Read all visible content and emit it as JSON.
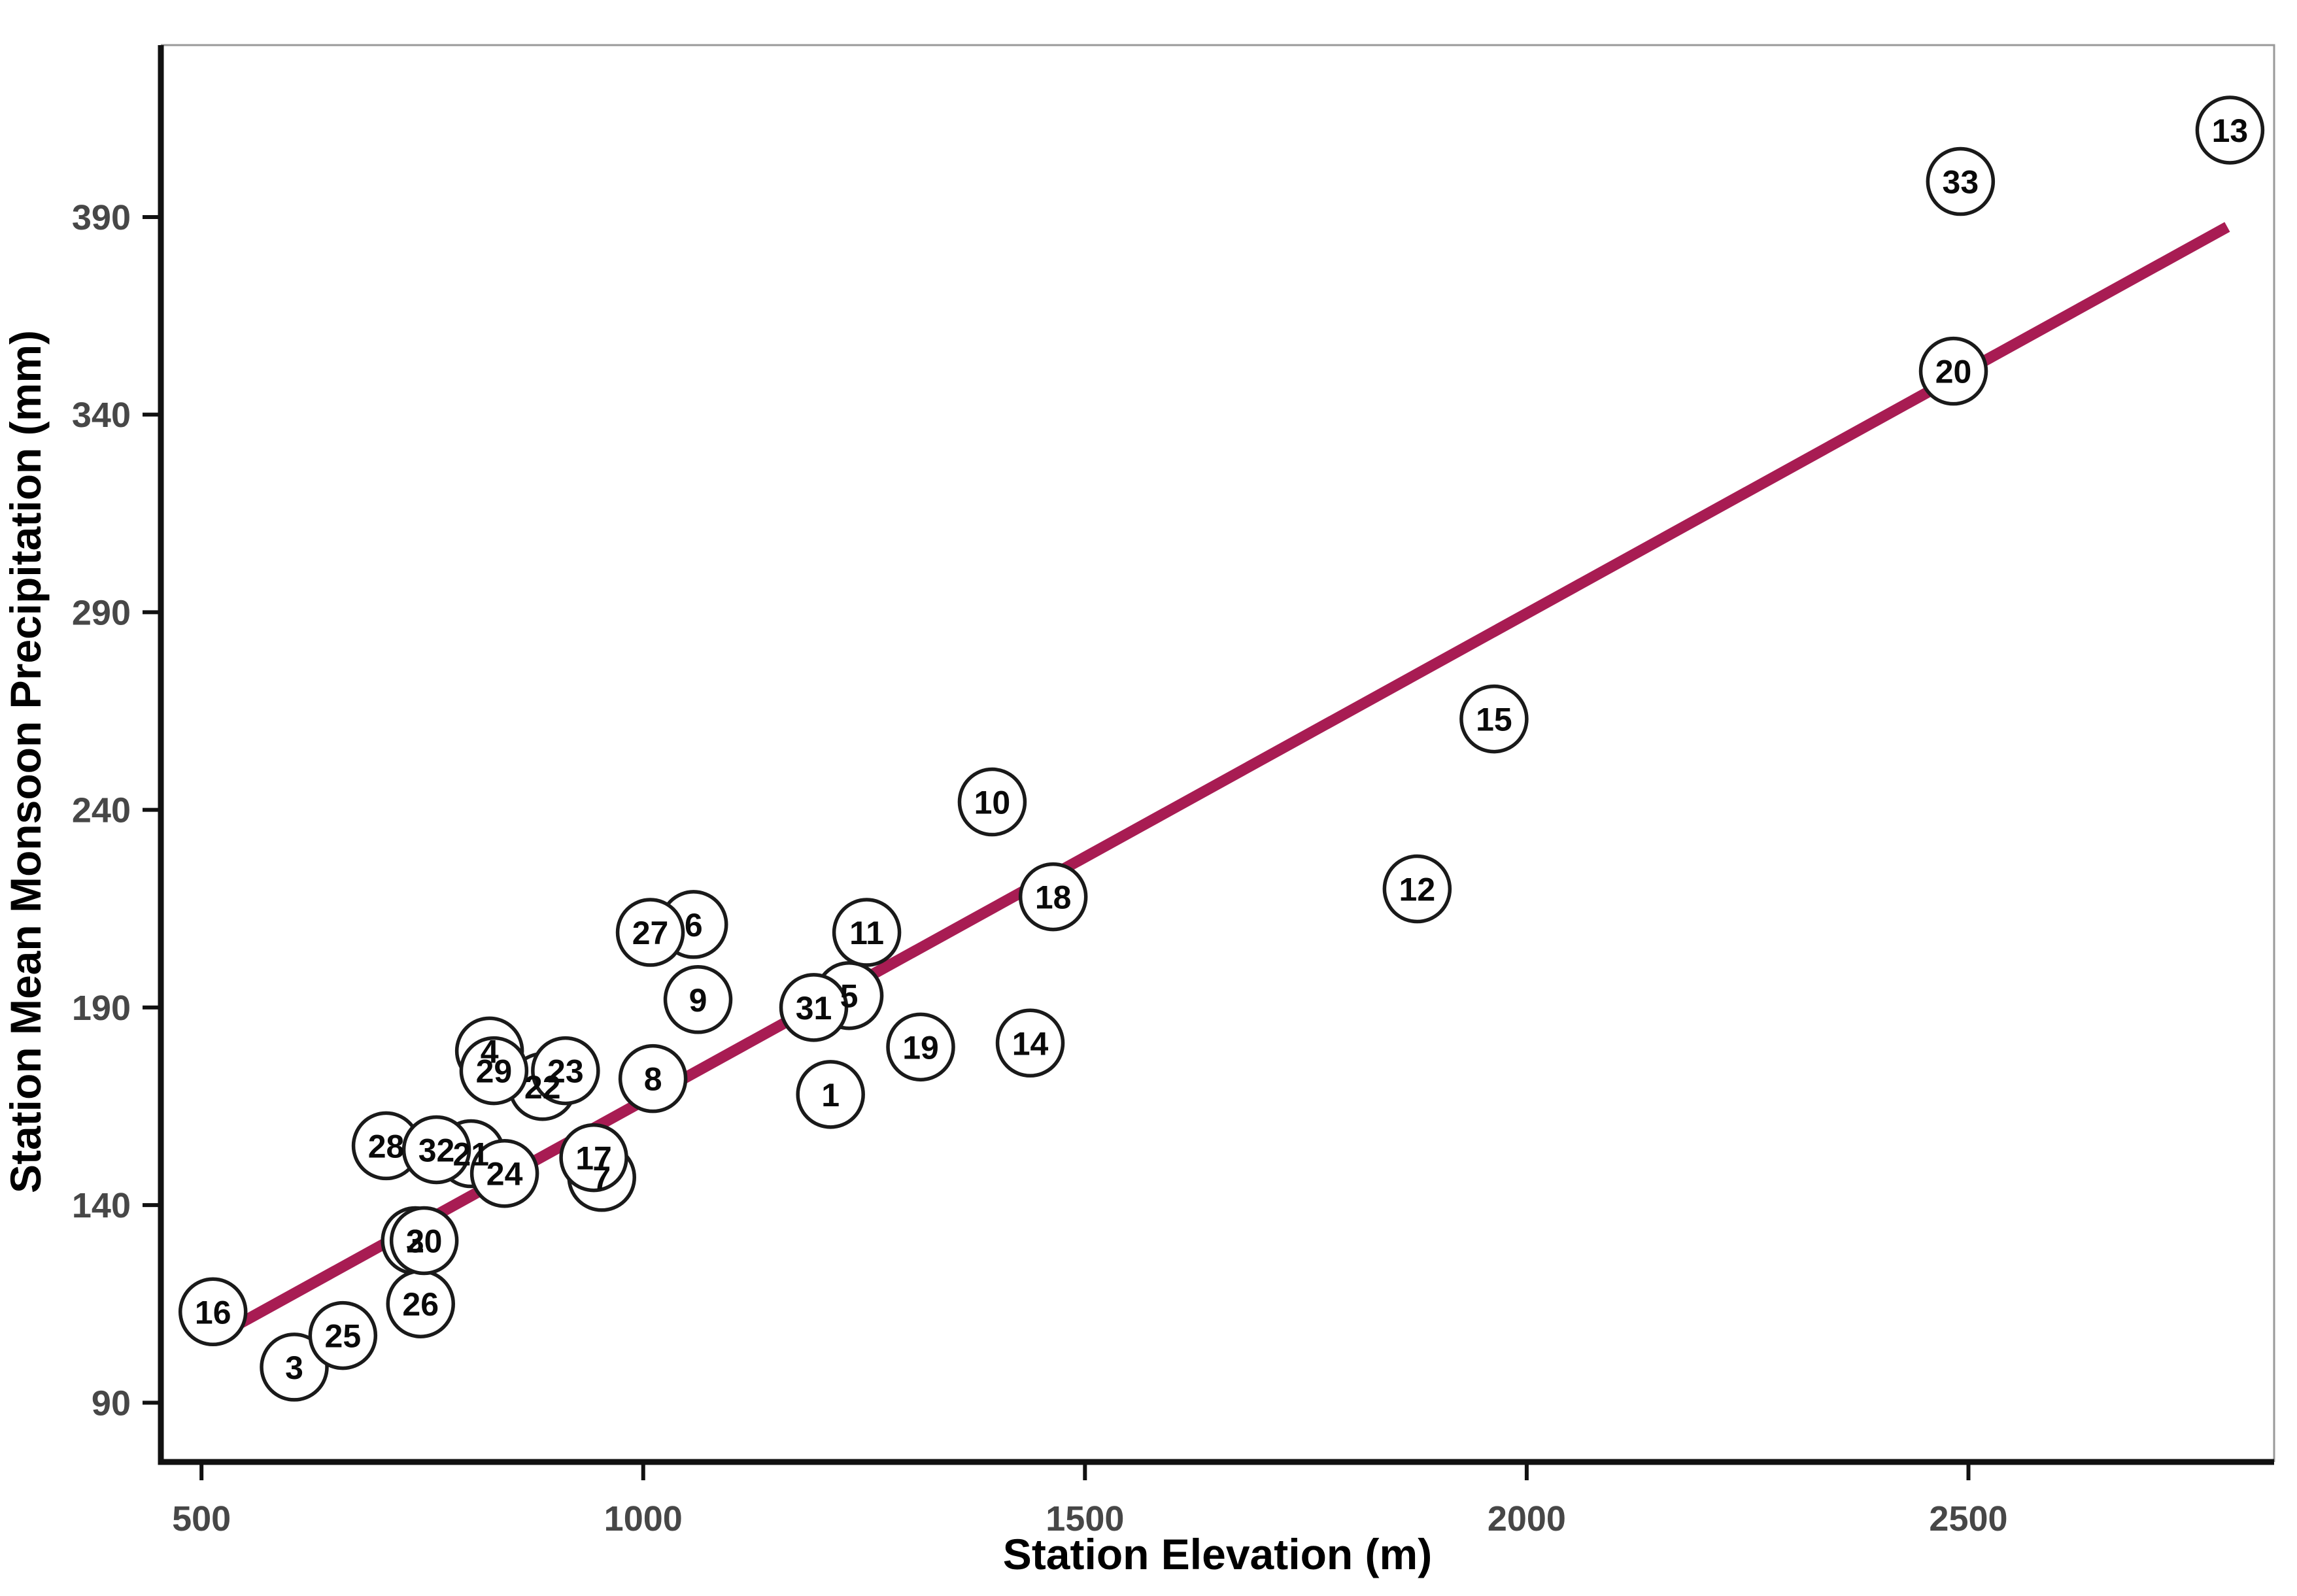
{
  "chart_data": {
    "type": "scatter",
    "title": "",
    "xlabel": "Station Elevation (m)",
    "ylabel": "Station Mean Monsoon Precipitation (mm)",
    "xlim": [
      454,
      2846
    ],
    "ylim": [
      75,
      433.5
    ],
    "x_ticks": [
      500,
      1000,
      1500,
      2000,
      2500
    ],
    "y_ticks": [
      90,
      140,
      190,
      240,
      290,
      340,
      390
    ],
    "grid": false,
    "legend": "none",
    "colors": {
      "axis": "#111111",
      "panel_border": "#999999",
      "tick_label": "#474747",
      "trend": "#A81C53",
      "point_stroke": "#1a1a1a",
      "point_fill": "#ffffff"
    },
    "point_style": {
      "shape": "open-circle-with-station-number",
      "radius_px": 50
    },
    "trend_line": {
      "type": "linear-fit",
      "color": "#A81C53",
      "x1": 535,
      "y1": 109,
      "x2": 2793,
      "y2": 387.5
    },
    "points": [
      {
        "id": 1,
        "x": 1212,
        "y": 168
      },
      {
        "id": 2,
        "x": 742,
        "y": 131
      },
      {
        "id": 3,
        "x": 605,
        "y": 99
      },
      {
        "id": 4,
        "x": 826,
        "y": 179
      },
      {
        "id": 5,
        "x": 1233,
        "y": 193
      },
      {
        "id": 6,
        "x": 1057,
        "y": 211
      },
      {
        "id": 7,
        "x": 953,
        "y": 147
      },
      {
        "id": 8,
        "x": 1011,
        "y": 172
      },
      {
        "id": 9,
        "x": 1062,
        "y": 192
      },
      {
        "id": 10,
        "x": 1395,
        "y": 242
      },
      {
        "id": 11,
        "x": 1253,
        "y": 209
      },
      {
        "id": 12,
        "x": 1876,
        "y": 220
      },
      {
        "id": 13,
        "x": 2796,
        "y": 412
      },
      {
        "id": 14,
        "x": 1438,
        "y": 181
      },
      {
        "id": 15,
        "x": 1963,
        "y": 263
      },
      {
        "id": 16,
        "x": 513,
        "y": 113
      },
      {
        "id": 17,
        "x": 944,
        "y": 152
      },
      {
        "id": 18,
        "x": 1464,
        "y": 218
      },
      {
        "id": 19,
        "x": 1314,
        "y": 180
      },
      {
        "id": 20,
        "x": 2483,
        "y": 351
      },
      {
        "id": 21,
        "x": 805,
        "y": 153
      },
      {
        "id": 22,
        "x": 886,
        "y": 170
      },
      {
        "id": 23,
        "x": 912,
        "y": 174
      },
      {
        "id": 24,
        "x": 843,
        "y": 148
      },
      {
        "id": 25,
        "x": 660,
        "y": 107
      },
      {
        "id": 26,
        "x": 748,
        "y": 115
      },
      {
        "id": 27,
        "x": 1008,
        "y": 209
      },
      {
        "id": 28,
        "x": 709,
        "y": 155
      },
      {
        "id": 29,
        "x": 831,
        "y": 174
      },
      {
        "id": 30,
        "x": 752,
        "y": 131
      },
      {
        "id": 31,
        "x": 1193,
        "y": 190
      },
      {
        "id": 32,
        "x": 766,
        "y": 154
      },
      {
        "id": 33,
        "x": 2491,
        "y": 399
      }
    ]
  }
}
